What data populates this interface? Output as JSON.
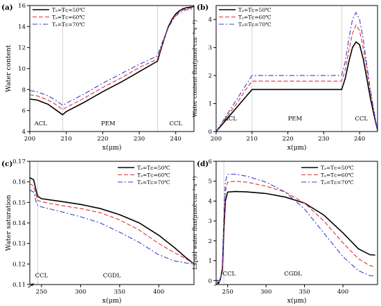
{
  "legend_labels": [
    "Tₐ=Tᴄ=50℃",
    "Tₐ=Tᴄ=60℃",
    "Tₐ=Tᴄ=70℃"
  ],
  "chart_data": [
    {
      "panel": "(a)",
      "type": "line",
      "xlabel": "x(μm)",
      "ylabel": "Water content",
      "xlim": [
        200,
        245
      ],
      "ylim": [
        4,
        16
      ],
      "xticks": [
        200,
        210,
        220,
        230,
        240
      ],
      "yticks": [
        4,
        6,
        8,
        10,
        12,
        14,
        16
      ],
      "vlines": [
        209,
        235
      ],
      "region_labels": [
        {
          "text": "ACL",
          "x": 203
        },
        {
          "text": "PEM",
          "x": 221.5
        },
        {
          "text": "CCL",
          "x": 240
        }
      ],
      "region_label_y": 4.6,
      "legend": "top-left",
      "series": [
        {
          "name": "Tₐ=Tᴄ=50℃",
          "color": "#000000",
          "dash": "",
          "width": 1.6,
          "x": [
            200,
            202,
            205,
            207,
            209,
            210,
            215,
            220,
            225,
            230,
            235,
            236,
            237,
            238,
            239,
            240,
            241,
            242,
            243,
            244,
            245
          ],
          "y": [
            7.1,
            7.0,
            6.6,
            6.1,
            5.6,
            5.9,
            6.8,
            7.8,
            8.7,
            9.7,
            10.7,
            11.9,
            13.0,
            14.0,
            14.7,
            15.2,
            15.5,
            15.7,
            15.8,
            15.85,
            15.9
          ]
        },
        {
          "name": "Tₐ=Tᴄ=60℃",
          "color": "#e03030",
          "dash": "6,3",
          "width": 1.1,
          "x": [
            200,
            202,
            205,
            207,
            209,
            210,
            215,
            220,
            225,
            230,
            235,
            236,
            237,
            238,
            239,
            240,
            241,
            242,
            243,
            244,
            245
          ],
          "y": [
            7.5,
            7.4,
            7.0,
            6.6,
            6.1,
            6.3,
            7.2,
            8.2,
            9.1,
            10.1,
            10.9,
            12.0,
            13.0,
            13.9,
            14.6,
            15.1,
            15.4,
            15.6,
            15.7,
            15.75,
            15.8
          ]
        },
        {
          "name": "Tₐ=Tᴄ=70℃",
          "color": "#3a3ad6",
          "dash": "7,3,2,3",
          "width": 1.1,
          "x": [
            200,
            202,
            205,
            207,
            209,
            210,
            215,
            220,
            225,
            230,
            235,
            236,
            237,
            238,
            239,
            240,
            241,
            242,
            243,
            244,
            245
          ],
          "y": [
            7.9,
            7.8,
            7.4,
            7.0,
            6.5,
            6.7,
            7.6,
            8.6,
            9.5,
            10.4,
            11.2,
            12.2,
            13.1,
            13.9,
            14.5,
            15.0,
            15.3,
            15.5,
            15.6,
            15.65,
            15.7
          ]
        }
      ]
    },
    {
      "panel": "(b)",
      "type": "line",
      "xlabel": "x(μm)",
      "ylabel": "Water content flux(μmol·cm⁻²·s⁻¹)",
      "xlim": [
        200,
        245
      ],
      "ylim": [
        0,
        4.5
      ],
      "xticks": [
        200,
        210,
        220,
        230,
        240
      ],
      "yticks": [
        0,
        1,
        2,
        3,
        4
      ],
      "vlines": [
        210,
        235
      ],
      "region_labels": [
        {
          "text": "ACL",
          "x": 204
        },
        {
          "text": "PEM",
          "x": 222
        },
        {
          "text": "CCL",
          "x": 240.5
        }
      ],
      "region_label_y": 0.4,
      "legend": "top-left",
      "series": [
        {
          "name": "Tₐ=Tᴄ=50℃",
          "color": "#000000",
          "dash": "",
          "width": 1.6,
          "x": [
            200,
            202,
            204,
            206,
            208,
            210,
            215,
            220,
            225,
            230,
            235,
            236,
            237,
            238,
            239,
            240,
            241,
            242,
            243,
            244,
            245
          ],
          "y": [
            0,
            0.3,
            0.6,
            0.9,
            1.2,
            1.5,
            1.5,
            1.5,
            1.5,
            1.5,
            1.5,
            1.9,
            2.5,
            3.0,
            3.2,
            3.1,
            2.6,
            1.9,
            1.2,
            0.6,
            0.05
          ]
        },
        {
          "name": "Tₐ=Tᴄ=60℃",
          "color": "#e03030",
          "dash": "6,3",
          "width": 1.1,
          "x": [
            200,
            202,
            204,
            206,
            208,
            210,
            215,
            220,
            225,
            230,
            235,
            236,
            237,
            238,
            239,
            240,
            241,
            242,
            243,
            244,
            245
          ],
          "y": [
            0,
            0.35,
            0.7,
            1.05,
            1.45,
            1.8,
            1.8,
            1.8,
            1.8,
            1.8,
            1.8,
            2.2,
            2.9,
            3.5,
            3.8,
            3.6,
            3.0,
            2.2,
            1.4,
            0.7,
            0.05
          ]
        },
        {
          "name": "Tₐ=Tᴄ=70℃",
          "color": "#3a3ad6",
          "dash": "7,3,2,3",
          "width": 1.1,
          "x": [
            200,
            202,
            204,
            206,
            208,
            210,
            215,
            220,
            225,
            230,
            235,
            236,
            237,
            238,
            239,
            240,
            241,
            242,
            243,
            244,
            245
          ],
          "y": [
            0,
            0.4,
            0.8,
            1.2,
            1.6,
            2.0,
            2.0,
            2.0,
            2.0,
            2.0,
            2.0,
            2.5,
            3.3,
            4.0,
            4.25,
            4.0,
            3.3,
            2.4,
            1.5,
            0.75,
            0.05
          ]
        }
      ]
    },
    {
      "panel": "(c)",
      "type": "line",
      "xlabel": "x(μm)",
      "ylabel": "Water saturation",
      "xlim": [
        235,
        445
      ],
      "ylim": [
        0.11,
        0.17
      ],
      "xticks": [
        250,
        300,
        350,
        400
      ],
      "yticks": [
        0.11,
        0.12,
        0.13,
        0.14,
        0.15,
        0.16,
        0.17
      ],
      "vlines": [
        245
      ],
      "region_labels": [
        {
          "text": "CCL",
          "x": 250
        },
        {
          "text": "CGDL",
          "x": 340
        }
      ],
      "region_label_y": 0.1135,
      "arrow": {
        "x": 240,
        "y": 0.1105
      },
      "legend": "top-right",
      "series": [
        {
          "name": "Tₐ=Tᴄ=50℃",
          "color": "#000000",
          "dash": "",
          "width": 1.6,
          "x": [
            235,
            240,
            243,
            245,
            250,
            275,
            300,
            325,
            350,
            375,
            400,
            420,
            435,
            445
          ],
          "y": [
            0.162,
            0.161,
            0.156,
            0.153,
            0.1518,
            0.1505,
            0.149,
            0.147,
            0.144,
            0.14,
            0.134,
            0.128,
            0.123,
            0.12
          ]
        },
        {
          "name": "Tₐ=Tᴄ=60℃",
          "color": "#e03030",
          "dash": "6,3",
          "width": 1.1,
          "x": [
            235,
            240,
            243,
            245,
            250,
            275,
            300,
            325,
            350,
            375,
            400,
            420,
            435,
            445
          ],
          "y": [
            0.159,
            0.158,
            0.1535,
            0.151,
            0.1503,
            0.1485,
            0.147,
            0.145,
            0.1415,
            0.1365,
            0.13,
            0.1255,
            0.1225,
            0.12
          ]
        },
        {
          "name": "Tₐ=Tᴄ=70℃",
          "color": "#3a3ad6",
          "dash": "7,3,2,3",
          "width": 1.1,
          "x": [
            235,
            240,
            243,
            245,
            250,
            275,
            300,
            325,
            350,
            375,
            400,
            420,
            435,
            445
          ],
          "y": [
            0.156,
            0.155,
            0.1505,
            0.1485,
            0.1478,
            0.1455,
            0.143,
            0.14,
            0.1355,
            0.1305,
            0.1245,
            0.1215,
            0.1205,
            0.12
          ]
        }
      ]
    },
    {
      "panel": "(d)",
      "type": "line",
      "xlabel": "x(μm)",
      "ylabel": "Liquid water flux(μmol·cm⁻²·s⁻¹)",
      "xlim": [
        235,
        445
      ],
      "ylim": [
        -0.2,
        6
      ],
      "xticks": [
        250,
        300,
        350,
        400
      ],
      "yticks": [
        0,
        1,
        2,
        3,
        4,
        5,
        6
      ],
      "vlines": [
        245
      ],
      "region_labels": [
        {
          "text": "CCL",
          "x": 252
        },
        {
          "text": "CGDL",
          "x": 335
        }
      ],
      "region_label_y": 0.25,
      "arrow": {
        "x": 240,
        "y": -0.05
      },
      "legend": "top-right",
      "series": [
        {
          "name": "Tₐ=Tᴄ=50℃",
          "color": "#000000",
          "dash": "",
          "width": 1.6,
          "x": [
            235,
            240,
            243,
            245,
            247,
            250,
            260,
            275,
            300,
            325,
            350,
            375,
            400,
            420,
            435,
            442
          ],
          "y": [
            0,
            0,
            0.5,
            2.5,
            4.0,
            4.45,
            4.48,
            4.46,
            4.38,
            4.2,
            3.9,
            3.3,
            2.4,
            1.6,
            1.3,
            1.28
          ]
        },
        {
          "name": "Tₐ=Tᴄ=60℃",
          "color": "#e03030",
          "dash": "6,3",
          "width": 1.1,
          "x": [
            235,
            240,
            243,
            245,
            247,
            250,
            260,
            275,
            300,
            325,
            350,
            375,
            400,
            420,
            435,
            442
          ],
          "y": [
            0,
            0,
            0.6,
            2.8,
            4.5,
            4.95,
            5.0,
            4.95,
            4.75,
            4.45,
            3.9,
            3.0,
            1.9,
            1.1,
            0.75,
            0.7
          ]
        },
        {
          "name": "Tₐ=Tᴄ=70℃",
          "color": "#3a3ad6",
          "dash": "7,3,2,3",
          "width": 1.1,
          "x": [
            235,
            240,
            243,
            245,
            247,
            250,
            260,
            275,
            300,
            325,
            350,
            375,
            400,
            420,
            435,
            442
          ],
          "y": [
            0,
            0,
            0.7,
            3.2,
            5.0,
            5.35,
            5.35,
            5.25,
            4.95,
            4.45,
            3.6,
            2.4,
            1.2,
            0.5,
            0.25,
            0.22
          ]
        }
      ]
    }
  ]
}
